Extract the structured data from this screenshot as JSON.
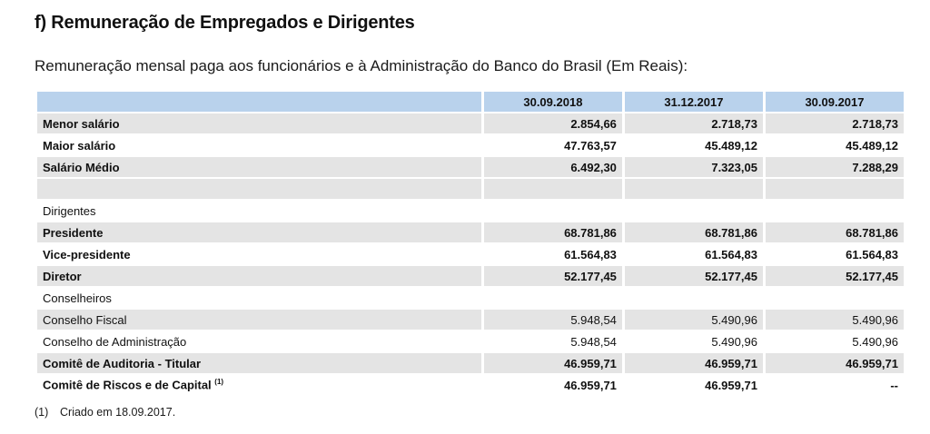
{
  "section_title": "f) Remuneração de Empregados e Dirigentes",
  "subtitle": "Remuneração mensal paga aos funcionários e à Administração do Banco do Brasil (Em Reais):",
  "table": {
    "columns": [
      "30.09.2018",
      "31.12.2017",
      "30.09.2017"
    ],
    "rows": [
      {
        "label": "Menor salário",
        "values": [
          "2.854,66",
          "2.718,73",
          "2.718,73"
        ]
      },
      {
        "label": "Maior salário",
        "values": [
          "47.763,57",
          "45.489,12",
          "45.489,12"
        ]
      },
      {
        "label": "Salário Médio",
        "values": [
          "6.492,30",
          "7.323,05",
          "7.288,29"
        ]
      },
      {
        "label": "",
        "values": [
          "",
          "",
          ""
        ]
      },
      {
        "label": "Dirigentes",
        "values": [
          "",
          "",
          ""
        ]
      },
      {
        "label": "Presidente",
        "values": [
          "68.781,86",
          "68.781,86",
          "68.781,86"
        ]
      },
      {
        "label": "Vice-presidente",
        "values": [
          "61.564,83",
          "61.564,83",
          "61.564,83"
        ]
      },
      {
        "label": "Diretor",
        "values": [
          "52.177,45",
          "52.177,45",
          "52.177,45"
        ]
      },
      {
        "label": "Conselheiros",
        "values": [
          "",
          "",
          ""
        ]
      },
      {
        "label": "Conselho Fiscal",
        "values": [
          "5.948,54",
          "5.490,96",
          "5.490,96"
        ]
      },
      {
        "label": "Conselho de Administração",
        "values": [
          "5.948,54",
          "5.490,96",
          "5.490,96"
        ]
      },
      {
        "label": "Comitê de Auditoria - Titular",
        "values": [
          "46.959,71",
          "46.959,71",
          "46.959,71"
        ]
      },
      {
        "label": "Comitê de Riscos e de Capital",
        "note_marker": "(1)",
        "values": [
          "46.959,71",
          "46.959,71",
          "--"
        ]
      }
    ]
  },
  "footnote": {
    "marker": "(1)",
    "text": "Criado em 18.09.2017."
  }
}
